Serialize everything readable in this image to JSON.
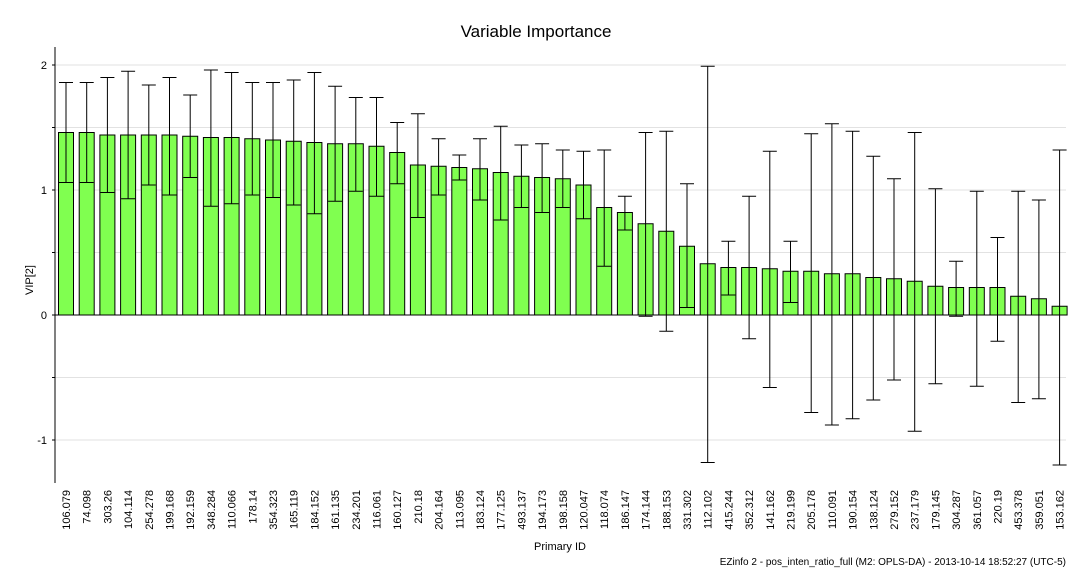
{
  "chart_data": {
    "type": "bar",
    "title": "Variable Importance",
    "xlabel": "Primary ID",
    "ylabel": "VIP[2]",
    "footer": "EZinfo 2 - pos_inten_ratio_full (M2: OPLS-DA) - 2013-10-14 18:52:27 (UTC-5)",
    "ylim": [
      -1.35,
      2.15
    ],
    "yticks": [
      -1,
      0,
      1,
      2
    ],
    "grid": true,
    "bar_color": "#80ff50",
    "categories": [
      "106.079",
      "74.098",
      "303.26",
      "104.114",
      "254.278",
      "199.168",
      "192.159",
      "348.284",
      "110.066",
      "178.14",
      "354.323",
      "165.119",
      "184.152",
      "161.135",
      "234.201",
      "116.061",
      "160.127",
      "210.18",
      "204.164",
      "113.095",
      "183.124",
      "177.125",
      "493.137",
      "194.173",
      "198.158",
      "120.047",
      "118.074",
      "186.147",
      "174.144",
      "188.153",
      "331.302",
      "112.102",
      "415.244",
      "352.312",
      "141.162",
      "219.199",
      "205.178",
      "110.091",
      "190.154",
      "138.124",
      "279.152",
      "237.179",
      "179.145",
      "304.287",
      "361.057",
      "220.19",
      "453.378",
      "359.051",
      "153.162"
    ],
    "values": [
      1.46,
      1.46,
      1.44,
      1.44,
      1.44,
      1.44,
      1.43,
      1.42,
      1.42,
      1.41,
      1.4,
      1.39,
      1.38,
      1.37,
      1.37,
      1.35,
      1.3,
      1.2,
      1.19,
      1.18,
      1.17,
      1.14,
      1.11,
      1.1,
      1.09,
      1.04,
      0.86,
      0.82,
      0.73,
      0.67,
      0.55,
      0.41,
      0.38,
      0.38,
      0.37,
      0.35,
      0.35,
      0.33,
      0.33,
      0.3,
      0.29,
      0.27,
      0.23,
      0.22,
      0.22,
      0.22,
      0.15,
      0.13,
      0.07
    ],
    "error_low": [
      1.06,
      1.06,
      0.98,
      0.93,
      1.04,
      0.96,
      1.1,
      0.87,
      0.89,
      0.96,
      0.94,
      0.88,
      0.81,
      0.91,
      0.99,
      0.95,
      1.05,
      0.78,
      0.96,
      1.08,
      0.92,
      0.76,
      0.86,
      0.82,
      0.86,
      0.77,
      0.39,
      0.68,
      -0.01,
      -0.13,
      0.06,
      -1.18,
      0.16,
      -0.19,
      -0.58,
      0.1,
      -0.78,
      -0.88,
      -0.83,
      -0.68,
      -0.52,
      -0.93,
      -0.55,
      -0.01,
      -0.57,
      -0.21,
      -0.7,
      -0.67,
      -1.2
    ],
    "error_high": [
      1.86,
      1.86,
      1.9,
      1.95,
      1.84,
      1.9,
      1.76,
      1.96,
      1.94,
      1.86,
      1.86,
      1.88,
      1.94,
      1.83,
      1.74,
      1.74,
      1.54,
      1.61,
      1.41,
      1.28,
      1.41,
      1.51,
      1.36,
      1.37,
      1.32,
      1.31,
      1.32,
      0.95,
      1.46,
      1.47,
      1.05,
      1.99,
      0.59,
      0.95,
      1.31,
      0.59,
      1.45,
      1.53,
      1.47,
      1.27,
      1.09,
      1.46,
      1.01,
      0.43,
      0.99,
      0.62,
      0.99,
      0.92,
      1.32
    ]
  }
}
